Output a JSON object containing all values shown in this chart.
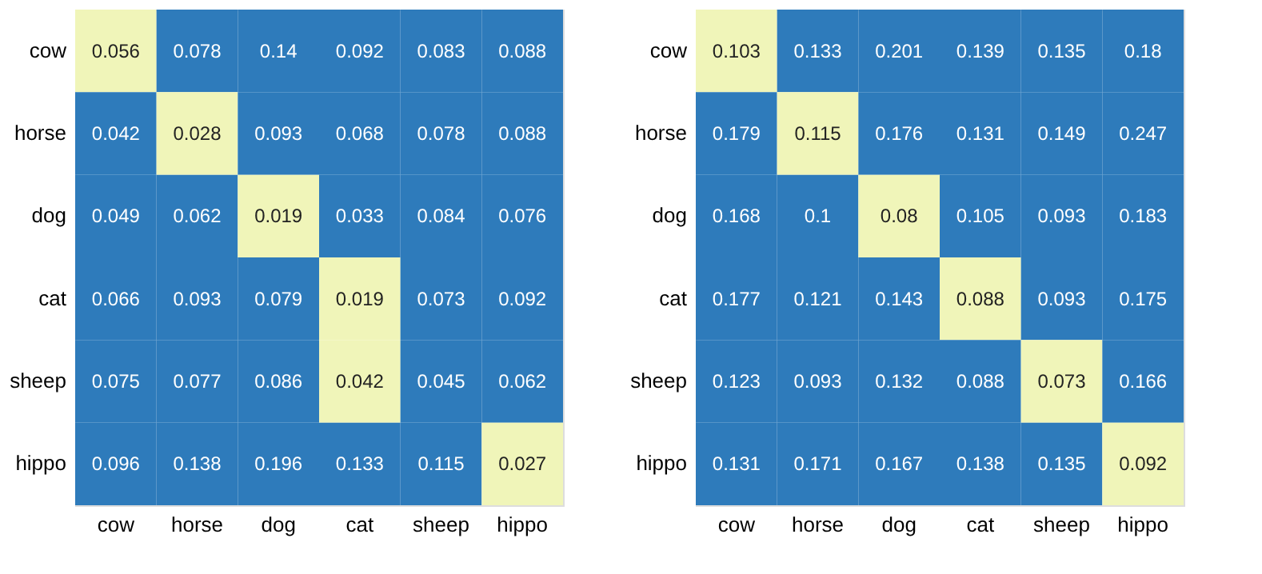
{
  "chart_data": [
    {
      "type": "heatmap",
      "data_labels": true,
      "categories": [
        "cow",
        "horse",
        "dog",
        "cat",
        "sheep",
        "hippo"
      ],
      "y_categories": [
        "cow",
        "horse",
        "dog",
        "cat",
        "sheep",
        "hippo"
      ],
      "cells": [
        [
          0.056,
          0.078,
          0.14,
          0.092,
          0.083,
          0.088
        ],
        [
          0.042,
          0.028,
          0.093,
          0.068,
          0.078,
          0.088
        ],
        [
          0.049,
          0.062,
          0.019,
          0.033,
          0.084,
          0.076
        ],
        [
          0.066,
          0.093,
          0.079,
          0.019,
          0.073,
          0.092
        ],
        [
          0.075,
          0.077,
          0.086,
          0.042,
          0.045,
          0.062
        ],
        [
          0.096,
          0.138,
          0.196,
          0.133,
          0.115,
          0.027
        ]
      ],
      "colors": [
        [
          "#f0f5b9",
          "#2e7bbb",
          "#2e7bbb",
          "#2e7bbb",
          "#2e7bbb",
          "#2e7bbb"
        ],
        [
          "#2e7bbb",
          "#f0f5b9",
          "#2e7bbb",
          "#2e7bbb",
          "#2e7bbb",
          "#2e7bbb"
        ],
        [
          "#2e7bbb",
          "#2e7bbb",
          "#f0f5b9",
          "#2e7bbb",
          "#2e7bbb",
          "#2e7bbb"
        ],
        [
          "#2e7bbb",
          "#2e7bbb",
          "#2e7bbb",
          "#f0f5b9",
          "#2e7bbb",
          "#2e7bbb"
        ],
        [
          "#2e7bbb",
          "#2e7bbb",
          "#2e7bbb",
          "#f0f5b9",
          "#2e7bbb",
          "#2e7bbb"
        ],
        [
          "#2e7bbb",
          "#2e7bbb",
          "#2e7bbb",
          "#2e7bbb",
          "#2e7bbb",
          "#f0f5b9"
        ]
      ]
    },
    {
      "type": "heatmap",
      "data_labels": true,
      "categories": [
        "cow",
        "horse",
        "dog",
        "cat",
        "sheep",
        "hippo"
      ],
      "y_categories": [
        "cow",
        "horse",
        "dog",
        "cat",
        "sheep",
        "hippo"
      ],
      "cells": [
        [
          0.103,
          0.133,
          0.201,
          0.139,
          0.135,
          0.18
        ],
        [
          0.179,
          0.115,
          0.176,
          0.131,
          0.149,
          0.247
        ],
        [
          0.168,
          0.1,
          0.08,
          0.105,
          0.093,
          0.183
        ],
        [
          0.177,
          0.121,
          0.143,
          0.088,
          0.093,
          0.175
        ],
        [
          0.123,
          0.093,
          0.132,
          0.088,
          0.073,
          0.166
        ],
        [
          0.131,
          0.171,
          0.167,
          0.138,
          0.135,
          0.092
        ]
      ],
      "colors": [
        [
          "#f0f5b9",
          "#2e7bbb",
          "#2e7bbb",
          "#2e7bbb",
          "#2e7bbb",
          "#2e7bbb"
        ],
        [
          "#2e7bbb",
          "#f0f5b9",
          "#2e7bbb",
          "#2e7bbb",
          "#2e7bbb",
          "#2e7bbb"
        ],
        [
          "#2e7bbb",
          "#2e7bbb",
          "#f0f5b9",
          "#2e7bbb",
          "#2e7bbb",
          "#2e7bbb"
        ],
        [
          "#2e7bbb",
          "#2e7bbb",
          "#2e7bbb",
          "#f0f5b9",
          "#2e7bbb",
          "#2e7bbb"
        ],
        [
          "#2e7bbb",
          "#2e7bbb",
          "#2e7bbb",
          "#2e7bbb",
          "#f0f5b9",
          "#2e7bbb"
        ],
        [
          "#2e7bbb",
          "#2e7bbb",
          "#2e7bbb",
          "#2e7bbb",
          "#2e7bbb",
          "#f0f5b9"
        ]
      ]
    }
  ]
}
